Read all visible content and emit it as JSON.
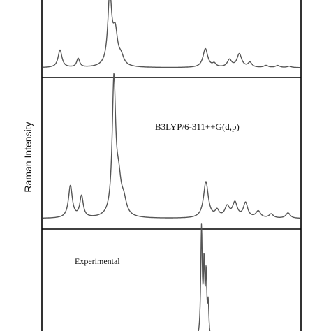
{
  "chart_data": {
    "type": "line",
    "title": "",
    "xlabel": "",
    "ylabel": "Raman Intensity",
    "xlim": [
      0,
      100
    ],
    "ylim": [
      0,
      1
    ],
    "grid": false,
    "stacked_panels": true,
    "panels": [
      {
        "label": "",
        "peaks": [
          {
            "x": 7,
            "y": 0.26,
            "w": 0.9
          },
          {
            "x": 14,
            "y": 0.13,
            "w": 0.7
          },
          {
            "x": 26.2,
            "y": 1.05,
            "w": 0.9
          },
          {
            "x": 28.3,
            "y": 0.48,
            "w": 1.1
          },
          {
            "x": 30.6,
            "y": 0.12,
            "w": 1.2
          },
          {
            "x": 63.1,
            "y": 0.28,
            "w": 1.1
          },
          {
            "x": 66.5,
            "y": 0.05,
            "w": 0.8
          },
          {
            "x": 72.4,
            "y": 0.11,
            "w": 1.0
          },
          {
            "x": 76.2,
            "y": 0.2,
            "w": 1.1
          },
          {
            "x": 80.3,
            "y": 0.07,
            "w": 0.9
          },
          {
            "x": 86.5,
            "y": 0.03,
            "w": 1.0
          },
          {
            "x": 91,
            "y": 0.03,
            "w": 1.0
          },
          {
            "x": 95.5,
            "y": 0.02,
            "w": 1.0
          }
        ]
      },
      {
        "label": "B3LYP/6-311++G(d,p)",
        "peaks": [
          {
            "x": 11,
            "y": 0.24,
            "w": 0.9
          },
          {
            "x": 15.3,
            "y": 0.16,
            "w": 0.8
          },
          {
            "x": 27.8,
            "y": 1.0,
            "w": 0.8
          },
          {
            "x": 29.6,
            "y": 0.24,
            "w": 1.2
          },
          {
            "x": 31.6,
            "y": 0.1,
            "w": 1.2
          },
          {
            "x": 63.3,
            "y": 0.27,
            "w": 1.1
          },
          {
            "x": 67.6,
            "y": 0.05,
            "w": 0.9
          },
          {
            "x": 71.5,
            "y": 0.08,
            "w": 1.1
          },
          {
            "x": 74.5,
            "y": 0.11,
            "w": 1.1
          },
          {
            "x": 78.6,
            "y": 0.11,
            "w": 1.0
          },
          {
            "x": 83.5,
            "y": 0.05,
            "w": 1.1
          },
          {
            "x": 88.5,
            "y": 0.03,
            "w": 1.0
          },
          {
            "x": 95,
            "y": 0.04,
            "w": 1.0
          }
        ]
      },
      {
        "label": "Experimental",
        "peaks": [
          {
            "x": 61.6,
            "y": 1.0,
            "w": 0.35
          },
          {
            "x": 62.6,
            "y": 0.64,
            "w": 0.3
          },
          {
            "x": 63.4,
            "y": 0.55,
            "w": 0.3
          },
          {
            "x": 64.2,
            "y": 0.3,
            "w": 0.3
          }
        ]
      }
    ]
  }
}
